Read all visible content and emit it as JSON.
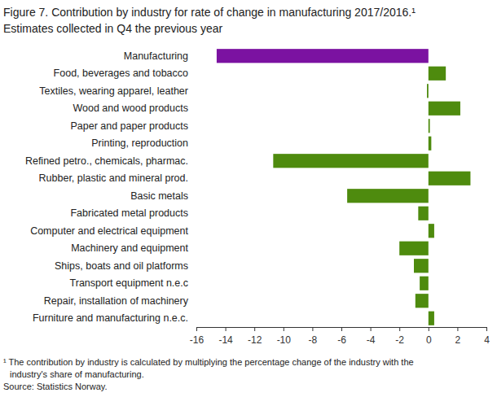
{
  "chart_data": {
    "type": "bar",
    "orientation": "horizontal",
    "title": "Figure 7. Contribution by industry for rate of change in manufacturing  2017/2016.¹",
    "subtitle": "Estimates collected in Q4 the previous year",
    "categories": [
      "Manufacturing",
      "Food, beverages and tobacco",
      "Textiles, wearing apparel, leather",
      "Wood and wood products",
      "Paper and paper products",
      "Printing, reproduction",
      "Refined petro., chemicals, pharmac.",
      "Rubber, plastic and mineral prod.",
      "Basic metals",
      "Fabricated metal products",
      "Computer and electrical equipment",
      "Machinery and equipment",
      "Ships, boats and oil platforms",
      "Transport equipment n.e.c",
      "Repair, installation of machinery",
      "Furniture and manufacturing n.e.c."
    ],
    "values": [
      -14.6,
      1.2,
      -0.1,
      2.2,
      0.1,
      0.2,
      -10.7,
      2.9,
      -5.6,
      -0.7,
      0.4,
      -2.0,
      -1.0,
      -0.6,
      -0.9,
      0.4
    ],
    "colors": [
      "#7b12a1",
      "#4e8b0e",
      "#4e8b0e",
      "#4e8b0e",
      "#4e8b0e",
      "#4e8b0e",
      "#4e8b0e",
      "#4e8b0e",
      "#4e8b0e",
      "#4e8b0e",
      "#4e8b0e",
      "#4e8b0e",
      "#4e8b0e",
      "#4e8b0e",
      "#4e8b0e",
      "#4e8b0e"
    ],
    "xlim": [
      -16,
      4
    ],
    "xticks": [
      -16,
      -14,
      -12,
      -10,
      -8,
      -6,
      -4,
      -2,
      0,
      2,
      4
    ],
    "grid": false,
    "annotations": [
      "¹ The contribution by industry is calculated by multiplying the percentage change of the industry with the",
      "industry's share of manufacturing.",
      "Source: Statistics Norway."
    ]
  }
}
